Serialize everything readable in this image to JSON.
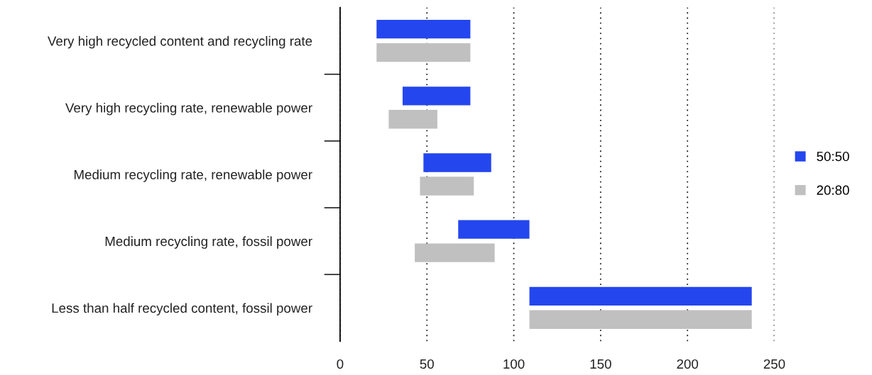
{
  "chart_data": {
    "type": "bar",
    "orientation": "horizontal",
    "categories": [
      "Very high recycled content and recycling rate",
      "Very high recycling rate, renewable power",
      "Medium recycling rate, renewable power",
      "Medium recycling rate, fossil power",
      "Less than half recycled content, fossil power"
    ],
    "series": [
      {
        "name": "50:50",
        "color": "#2446ee",
        "base": [
          21,
          36,
          48,
          68,
          109
        ],
        "values": [
          54,
          39,
          39,
          41,
          128
        ]
      },
      {
        "name": "20:80",
        "color": "#c0c0c0",
        "base": [
          21,
          28,
          46,
          43,
          109
        ],
        "values": [
          54,
          28,
          31,
          46,
          128
        ]
      }
    ],
    "xlim": [
      0,
      250
    ],
    "xticks": [
      0,
      50,
      100,
      150,
      200,
      250
    ],
    "grid": "x",
    "legend": "right"
  }
}
